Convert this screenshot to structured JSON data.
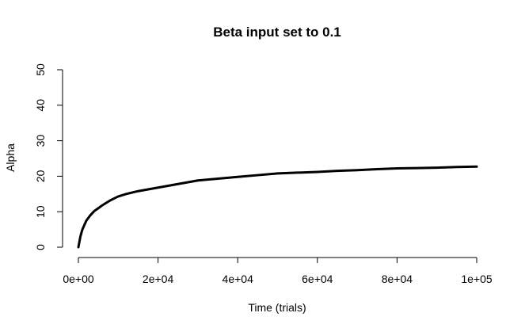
{
  "chart_data": {
    "type": "line",
    "title": "Beta input set to 0.1",
    "xlabel": "Time (trials)",
    "ylabel": "Alpha",
    "xlim": [
      0,
      100000
    ],
    "ylim": [
      0,
      50
    ],
    "grid": false,
    "x_ticks": [
      0,
      20000,
      40000,
      60000,
      80000,
      100000
    ],
    "x_tick_labels": [
      "0e+00",
      "2e+04",
      "4e+04",
      "6e+04",
      "8e+04",
      "1e+05"
    ],
    "y_ticks": [
      0,
      10,
      20,
      30,
      40,
      50
    ],
    "y_tick_labels": [
      "0",
      "10",
      "20",
      "30",
      "40",
      "50"
    ],
    "line_color": "#000000",
    "series": [
      {
        "x": [
          0,
          500,
          1000,
          2000,
          3000,
          4000,
          5000,
          6000,
          8000,
          10000,
          12000,
          15000,
          20000,
          25000,
          30000,
          35000,
          40000,
          45000,
          50000,
          55000,
          60000,
          65000,
          70000,
          75000,
          80000,
          85000,
          90000,
          95000,
          100000
        ],
        "y": [
          0,
          3,
          5,
          7.5,
          9,
          10.2,
          11,
          11.8,
          13.2,
          14.3,
          15,
          15.8,
          16.8,
          17.8,
          18.8,
          19.3,
          19.8,
          20.3,
          20.8,
          21,
          21.2,
          21.5,
          21.7,
          22,
          22.2,
          22.3,
          22.4,
          22.6,
          22.7
        ]
      }
    ]
  }
}
